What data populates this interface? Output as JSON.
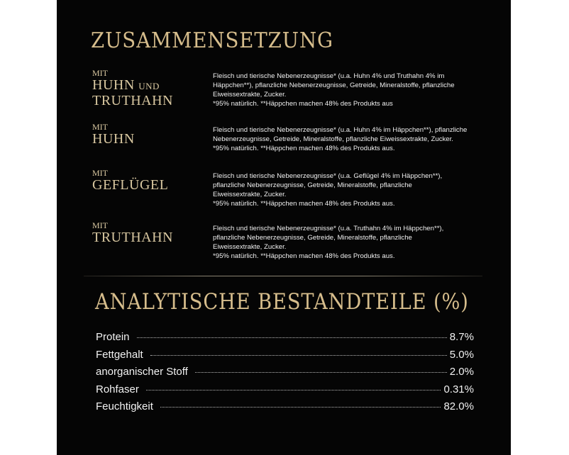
{
  "composition": {
    "title": "ZUSAMMENSETZUNG",
    "items": [
      {
        "prefix": "MIT",
        "name": "HUHN",
        "conj": "UND",
        "name2": "TRUTHAHN",
        "lines": [
          "Fleisch und tierische Nebenerzeugnisse* (u.a. Huhn 4% und Truthahn 4% im",
          "Häppchen**), pflanzliche Nebenerzeugnisse, Getreide, Mineralstoffe, pflanzliche",
          "Eiweissextrakte, Zucker.",
          "*95% natürlich. **Häppchen machen 48% des Produkts aus"
        ]
      },
      {
        "prefix": "MIT",
        "name": "HUHN",
        "lines": [
          "Fleisch und tierische Nebenerzeugnisse* (u.a. Huhn 4% im Häppchen**), pflanzliche",
          "Nebenerzeugnisse, Getreide, Mineralstoffe, pflanzliche Eiweissextrakte, Zucker.",
          "*95% natürlich. **Häppchen machen 48% des Produkts aus."
        ]
      },
      {
        "prefix": "MIT",
        "name": "GEFLÜGEL",
        "lines": [
          "Fleisch und tierische Nebenerzeugnisse* (u.a. Geflügel 4% im Häppchen**),",
          "pflanzliche Nebenerzeugnisse, Getreide, Mineralstoffe, pflanzliche",
          "Eiweissextrakte, Zucker.",
          "*95% natürlich. **Häppchen machen 48% des Produkts aus."
        ]
      },
      {
        "prefix": "MIT",
        "name": "TRUTHAHN",
        "lines": [
          "Fleisch und tierische Nebenerzeugnisse* (u.a. Truthahn 4% im Häppchen**),",
          "pflanzliche Nebenerzeugnisse, Getreide, Mineralstoffe, pflanzliche",
          "Eiweissextrakte, Zucker.",
          "*95% natürlich. **Häppchen machen 48% des Produkts aus."
        ]
      }
    ]
  },
  "analysis": {
    "title": "ANALYTISCHE BESTANDTEILE (%)",
    "rows": [
      {
        "label": "Protein",
        "value": "8.7%"
      },
      {
        "label": "Fettgehalt",
        "value": "5.0%"
      },
      {
        "label": "anorganischer Stoff",
        "value": "2.0%"
      },
      {
        "label": "Rohfaser",
        "value": "0.31%"
      },
      {
        "label": "Feuchtigkeit",
        "value": "82.0%"
      }
    ]
  },
  "colors": {
    "background": "#050505",
    "gold": "#d6bd8c",
    "text": "#f0f0f0"
  }
}
